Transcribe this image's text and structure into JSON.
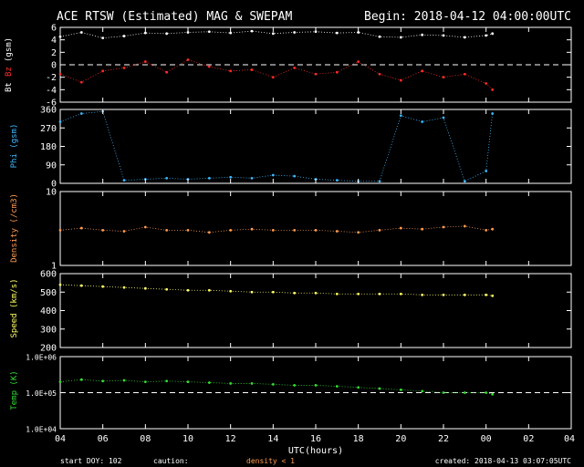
{
  "header": {
    "title": "ACE RTSW (Estimated) MAG & SWEPAM",
    "begin": "Begin: 2018-04-12 04:00:00UTC"
  },
  "footer": {
    "start_doy": "start DOY: 102",
    "caution": "caution:",
    "density_note": "density < 1",
    "created": "created: 2018-04-13 03:07:05UTC"
  },
  "xaxis": {
    "label": "UTC(hours)",
    "ticks": [
      "04",
      "06",
      "08",
      "10",
      "12",
      "14",
      "16",
      "18",
      "20",
      "22",
      "00",
      "02",
      "04"
    ],
    "range_hours": [
      4,
      28
    ]
  },
  "colors": {
    "bt": "#ffffff",
    "bz": "#ff2a2a",
    "phi": "#3fb9ff",
    "density": "#ff9a50",
    "speed": "#ffff66",
    "temp": "#33dd33",
    "frame": "#ffffff"
  },
  "chart_data": [
    {
      "type": "scatter",
      "panel": "mag",
      "ylabel_parts": [
        "Bt",
        "Bz",
        "(gsm)"
      ],
      "ylim": [
        -6,
        6
      ],
      "yticks": [
        "6",
        "4",
        "2",
        "0",
        "-2",
        "-4",
        "-6"
      ],
      "dashed_zero": true,
      "series": [
        {
          "name": "Bt",
          "x": [
            4,
            5,
            6,
            7,
            8,
            9,
            10,
            11,
            12,
            13,
            14,
            15,
            16,
            17,
            18,
            19,
            20,
            21,
            22,
            23,
            24,
            24.3
          ],
          "y": [
            4.5,
            5.2,
            4.3,
            4.6,
            5.1,
            5.0,
            5.2,
            5.3,
            5.1,
            5.4,
            5.0,
            5.2,
            5.3,
            5.1,
            5.2,
            4.5,
            4.4,
            4.8,
            4.7,
            4.4,
            4.7,
            5.0
          ]
        },
        {
          "name": "Bz",
          "x": [
            4,
            5,
            6,
            7,
            8,
            9,
            10,
            11,
            12,
            13,
            14,
            15,
            16,
            17,
            18,
            19,
            20,
            21,
            22,
            23,
            24,
            24.3
          ],
          "y": [
            -1.5,
            -2.8,
            -1.0,
            -0.5,
            0.5,
            -1.2,
            0.8,
            -0.3,
            -1.0,
            -0.8,
            -2.0,
            -0.5,
            -1.5,
            -1.2,
            0.5,
            -1.5,
            -2.5,
            -1.0,
            -2.0,
            -1.5,
            -3.0,
            -4.0
          ]
        }
      ]
    },
    {
      "type": "scatter",
      "panel": "phi",
      "ylabel": "Phi (gsm)",
      "ylim": [
        0,
        360
      ],
      "yticks": [
        "360",
        "270",
        "180",
        "90",
        "0"
      ],
      "series": [
        {
          "name": "Phi",
          "x": [
            4,
            5,
            6,
            7,
            8,
            9,
            10,
            11,
            12,
            13,
            14,
            15,
            16,
            17,
            18,
            19,
            20,
            21,
            22,
            23,
            24,
            24.3
          ],
          "y": [
            300,
            340,
            350,
            15,
            20,
            25,
            20,
            25,
            30,
            25,
            40,
            35,
            20,
            15,
            10,
            10,
            330,
            300,
            320,
            10,
            60,
            340
          ]
        }
      ]
    },
    {
      "type": "scatter",
      "panel": "density",
      "ylabel": "Density (/cm3)",
      "ylim": [
        1,
        10
      ],
      "yscale": "log",
      "yticks": [
        "10",
        "1"
      ],
      "series": [
        {
          "name": "Density",
          "x": [
            4,
            5,
            6,
            7,
            8,
            9,
            10,
            11,
            12,
            13,
            14,
            15,
            16,
            17,
            18,
            19,
            20,
            21,
            22,
            23,
            24,
            24.3
          ],
          "y": [
            3.0,
            3.2,
            3.0,
            2.9,
            3.3,
            3.0,
            3.0,
            2.8,
            3.0,
            3.1,
            3.0,
            3.0,
            3.0,
            2.9,
            2.8,
            3.0,
            3.2,
            3.1,
            3.3,
            3.4,
            3.0,
            3.1
          ]
        }
      ]
    },
    {
      "type": "scatter",
      "panel": "speed",
      "ylabel": "Speed (km/s)",
      "ylim": [
        200,
        600
      ],
      "yticks": [
        "600",
        "500",
        "400",
        "300",
        "200"
      ],
      "series": [
        {
          "name": "Speed",
          "x": [
            4,
            5,
            6,
            7,
            8,
            9,
            10,
            11,
            12,
            13,
            14,
            15,
            16,
            17,
            18,
            19,
            20,
            21,
            22,
            23,
            24,
            24.3
          ],
          "y": [
            540,
            535,
            530,
            525,
            520,
            515,
            510,
            510,
            505,
            500,
            500,
            495,
            495,
            490,
            490,
            490,
            490,
            485,
            485,
            485,
            485,
            480
          ]
        }
      ]
    },
    {
      "type": "scatter",
      "panel": "temp",
      "ylabel": "Temp (K)",
      "ylim": [
        10000,
        1000000
      ],
      "yscale": "log",
      "yticks": [
        "1.0E+06",
        "1.0E+05",
        "1.0E+04"
      ],
      "dashed_ref": 100000,
      "series": [
        {
          "name": "Temp",
          "x": [
            4,
            5,
            6,
            7,
            8,
            9,
            10,
            11,
            12,
            13,
            14,
            15,
            16,
            17,
            18,
            19,
            20,
            21,
            22,
            23,
            24,
            24.3
          ],
          "y": [
            200000,
            230000,
            210000,
            220000,
            200000,
            210000,
            200000,
            190000,
            180000,
            180000,
            170000,
            160000,
            160000,
            150000,
            140000,
            130000,
            120000,
            110000,
            100000,
            100000,
            100000,
            90000
          ]
        }
      ]
    }
  ]
}
